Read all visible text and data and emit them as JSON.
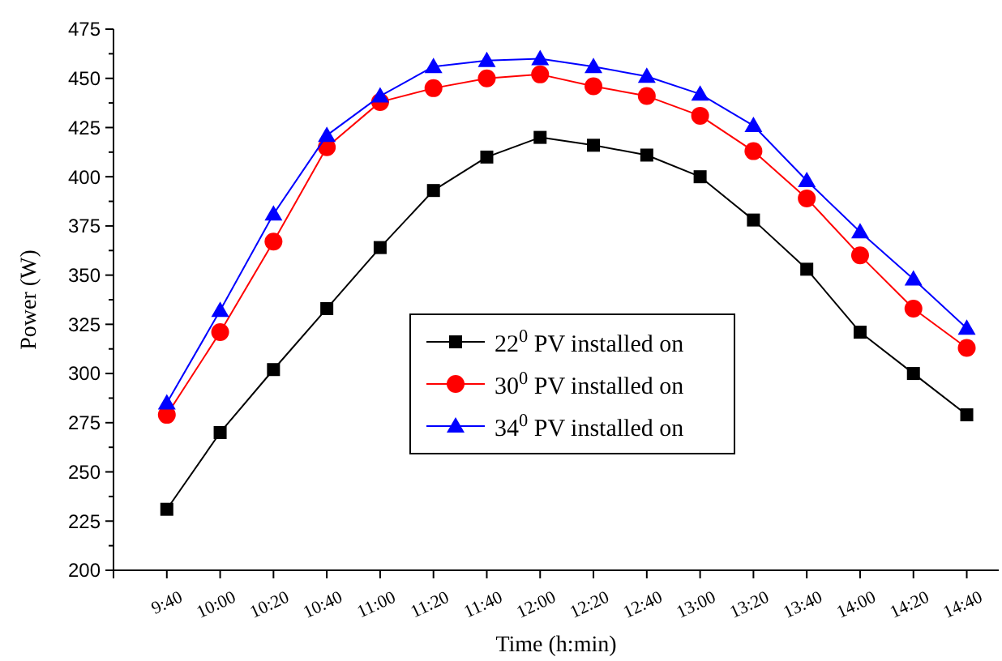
{
  "chart_data": {
    "type": "line",
    "xlabel": "Time (h:min)",
    "ylabel": "Power (W)",
    "categories": [
      "9:40",
      "10:00",
      "10:20",
      "10:40",
      "11:00",
      "11:20",
      "11:40",
      "12:00",
      "12:20",
      "12:40",
      "13:00",
      "13:20",
      "13:40",
      "14:00",
      "14:20",
      "14:40"
    ],
    "series": [
      {
        "name": "22$^{0}$ PV installed on",
        "color": "#000000",
        "marker": "square",
        "values": [
          231,
          270,
          302,
          333,
          364,
          393,
          410,
          420,
          416,
          411,
          400,
          378,
          353,
          321,
          300,
          279
        ]
      },
      {
        "name": "30$^{0}$ PV installed on",
        "color": "#ff0000",
        "marker": "circle",
        "values": [
          279,
          321,
          367,
          415,
          438,
          445,
          450,
          452,
          446,
          441,
          431,
          413,
          389,
          360,
          333,
          313
        ]
      },
      {
        "name": "34$^{0}$ PV installed on",
        "color": "#0000ff",
        "marker": "triangle",
        "values": [
          285,
          332,
          381,
          421,
          441,
          456,
          459,
          460,
          456,
          451,
          442,
          426,
          398,
          372,
          348,
          323
        ]
      }
    ],
    "ylim": [
      200,
      475
    ],
    "yticks": [
      200,
      225,
      250,
      275,
      300,
      325,
      350,
      375,
      400,
      425,
      450,
      475
    ],
    "grid": false,
    "legend": "bottom",
    "line_style": "solid"
  }
}
